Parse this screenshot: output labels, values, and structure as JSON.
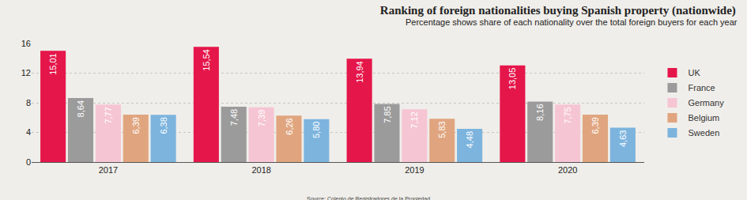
{
  "chart_data": {
    "type": "bar",
    "title": "Ranking of foreign nationalities buying Spanish property (nationwide)",
    "subtitle": "Percentage shows share of each nationality over the total foreign buyers for each year",
    "annotations": [
      "Source: Colegio de Registradores de la Propiedad"
    ],
    "categories": [
      "2017",
      "2018",
      "2019",
      "2020"
    ],
    "series": [
      {
        "name": "UK",
        "color": "#e5164a",
        "values": [
          15.01,
          15.54,
          13.94,
          13.05
        ],
        "value_labels": [
          "15,01",
          "15,54",
          "13,94",
          "13,05"
        ]
      },
      {
        "name": "France",
        "color": "#9b9b9b",
        "values": [
          8.64,
          7.48,
          7.85,
          8.16
        ],
        "value_labels": [
          "8,64",
          "7,48",
          "7,85",
          "8,16"
        ]
      },
      {
        "name": "Germany",
        "color": "#f6c5d3",
        "values": [
          7.77,
          7.39,
          7.12,
          7.75
        ],
        "value_labels": [
          "7,77",
          "7,39",
          "7,12",
          "7,75"
        ]
      },
      {
        "name": "Belgium",
        "color": "#e0a57f",
        "values": [
          6.39,
          6.26,
          5.83,
          6.39
        ],
        "value_labels": [
          "6,39",
          "6,26",
          "5,83",
          "6,39"
        ]
      },
      {
        "name": "Sweden",
        "color": "#7cb4de",
        "values": [
          6.38,
          5.8,
          4.48,
          4.63
        ],
        "value_labels": [
          "6,38",
          "5,80",
          "4,48",
          "4,63"
        ]
      }
    ],
    "ylim": [
      0,
      16
    ],
    "yticks": [
      0,
      4,
      8,
      12,
      16
    ],
    "grid": true,
    "legend": "right",
    "data_labels": true
  }
}
